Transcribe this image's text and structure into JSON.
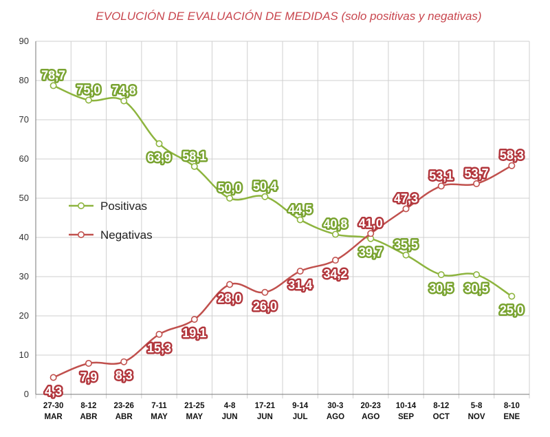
{
  "chart_data": {
    "type": "line",
    "title": "EVOLUCIÓN DE EVALUACIÓN DE MEDIDAS (solo positivas y negativas)",
    "categories": [
      [
        "27-30",
        "MAR"
      ],
      [
        "8-12",
        "ABR"
      ],
      [
        "23-26",
        "ABR"
      ],
      [
        "7-11",
        "MAY"
      ],
      [
        "21-25",
        "MAY"
      ],
      [
        "4-8",
        "JUN"
      ],
      [
        "17-21",
        "JUN"
      ],
      [
        "9-14",
        "JUL"
      ],
      [
        "30-3",
        "AGO"
      ],
      [
        "20-23",
        "AGO"
      ],
      [
        "10-14",
        "SEP"
      ],
      [
        "8-12",
        "OCT"
      ],
      [
        "5-8",
        "NOV"
      ],
      [
        "8-10",
        "ENE"
      ]
    ],
    "ylim": [
      0,
      90
    ],
    "yticks": [
      0,
      10,
      20,
      30,
      40,
      50,
      60,
      70,
      80,
      90
    ],
    "grid": true,
    "legend_position": "left-middle",
    "series": [
      {
        "name": "Positivas",
        "color": "#8db43e",
        "label_color": "#79a330",
        "values": [
          78.7,
          75.0,
          74.8,
          63.9,
          58.1,
          50.0,
          50.4,
          44.5,
          40.8,
          39.7,
          35.5,
          30.5,
          30.5,
          25.0
        ],
        "labels": [
          "78,7",
          "75,0",
          "74,8",
          "63,9",
          "58,1",
          "50,0",
          "50,4",
          "44,5",
          "40,8",
          "39,7",
          "35,5",
          "30,5",
          "30,5",
          "25,0"
        ],
        "label_side": [
          "above",
          "above",
          "above",
          "below",
          "above",
          "above",
          "above",
          "above",
          "above",
          "below",
          "above",
          "below",
          "below",
          "below"
        ]
      },
      {
        "name": "Negativas",
        "color": "#c0504d",
        "label_color": "#b2373d",
        "values": [
          4.3,
          7.9,
          8.3,
          15.3,
          19.1,
          28.0,
          26.0,
          31.4,
          34.2,
          41.0,
          47.3,
          53.1,
          53.7,
          58.3
        ],
        "labels": [
          "4,3",
          "7,9",
          "8,3",
          "15,3",
          "19,1",
          "28,0",
          "26,0",
          "31,4",
          "34,2",
          "41,0",
          "47,3",
          "53,1",
          "53,7",
          "58,3"
        ],
        "label_side": [
          "below",
          "below",
          "below",
          "below",
          "below",
          "below",
          "below",
          "below",
          "below",
          "above",
          "above",
          "above",
          "above",
          "above"
        ]
      }
    ]
  }
}
